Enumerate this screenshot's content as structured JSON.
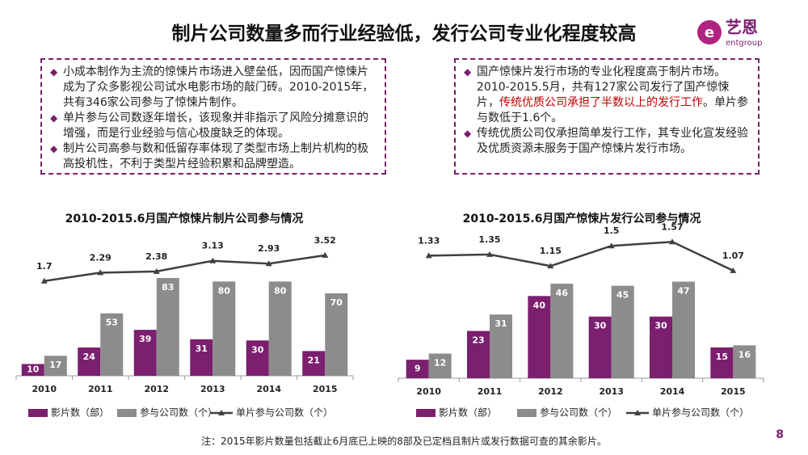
{
  "title": "制片公司数量多而行业经验低，发行公司专业化程度较高",
  "logo": {
    "name": "艺恩",
    "sub": "entgroup"
  },
  "left_box": {
    "bullets": [
      [
        {
          "text": "小成本制作为主流的惊悚片市场进入壁垒低，因而国产惊悚片成为了众多影视公司试水电影市场的敲门砖。2010-2015年，共有346家公司参与了惊悚片制作。"
        }
      ],
      [
        {
          "text": "单片参与公司数逐年增长，该现象并非指示了风险分摊意识的增强，而是行业经验与信心极度缺乏的体现。"
        }
      ],
      [
        {
          "text": "制片公司高参与数和低留存率体现了类型市场上制片机构的极高投机性，不利于类型片经验积累和品牌塑造。"
        }
      ]
    ]
  },
  "right_box": {
    "bullets": [
      [
        {
          "text": "国产惊悚片发行市场的专业化程度高于制片市场。2010-2015.5月，共有127家公司发行了国产惊悚片，"
        },
        {
          "text": "传统优质公司承担了半数以上的发行工作",
          "color": "#c00000"
        },
        {
          "text": "。单片参与数低于1.6个。"
        }
      ],
      [
        {
          "text": "传统优质公司仅承担简单发行工作，其专业化宣发经验及优质资源未服务于国产惊悚片发行市场。"
        }
      ]
    ]
  },
  "chart_data": [
    {
      "type": "combo",
      "title": "2010-2015.6月国产惊悚片制片公司参与情况",
      "categories": [
        "2010",
        "2011",
        "2012",
        "2013",
        "2014",
        "2015"
      ],
      "ylim": [
        0,
        120
      ],
      "y2lim": [
        -5,
        5
      ],
      "series": [
        {
          "name": "影片数（部）",
          "type": "bar",
          "color": "#7b1f6e",
          "values": [
            10,
            24,
            39,
            31,
            30,
            21
          ]
        },
        {
          "name": "参与公司数（个）",
          "type": "bar",
          "color": "#8c8c8c",
          "values": [
            17,
            53,
            83,
            80,
            80,
            70
          ]
        },
        {
          "name": "单片参与公司数（个）",
          "type": "line",
          "axis": "y2",
          "color": "#404040",
          "values": [
            1.7,
            2.29,
            2.38,
            3.13,
            2.93,
            3.52
          ]
        }
      ]
    },
    {
      "type": "combo",
      "title": "2010-2015.6月国产惊悚片发行公司参与情况",
      "categories": [
        "2010",
        "2011",
        "2012",
        "2013",
        "2014",
        "2015"
      ],
      "ylim": [
        0,
        70
      ],
      "y2lim": [
        -0.8,
        1.7
      ],
      "series": [
        {
          "name": "影片数（部）",
          "type": "bar",
          "color": "#7b1f6e",
          "values": [
            9,
            23,
            40,
            30,
            30,
            15
          ]
        },
        {
          "name": "参与公司数（个）",
          "type": "bar",
          "color": "#8c8c8c",
          "values": [
            12,
            31,
            46,
            45,
            47,
            16
          ]
        },
        {
          "name": "单片参与公司数（个）",
          "type": "line",
          "axis": "y2",
          "color": "#404040",
          "values": [
            1.33,
            1.35,
            1.15,
            1.5,
            1.57,
            1.07
          ]
        }
      ]
    }
  ],
  "note": "注：2015年影片数量包括截止6月底已上映的8部及已定档且制片或发行数据可查的其余影片。",
  "page": "8"
}
